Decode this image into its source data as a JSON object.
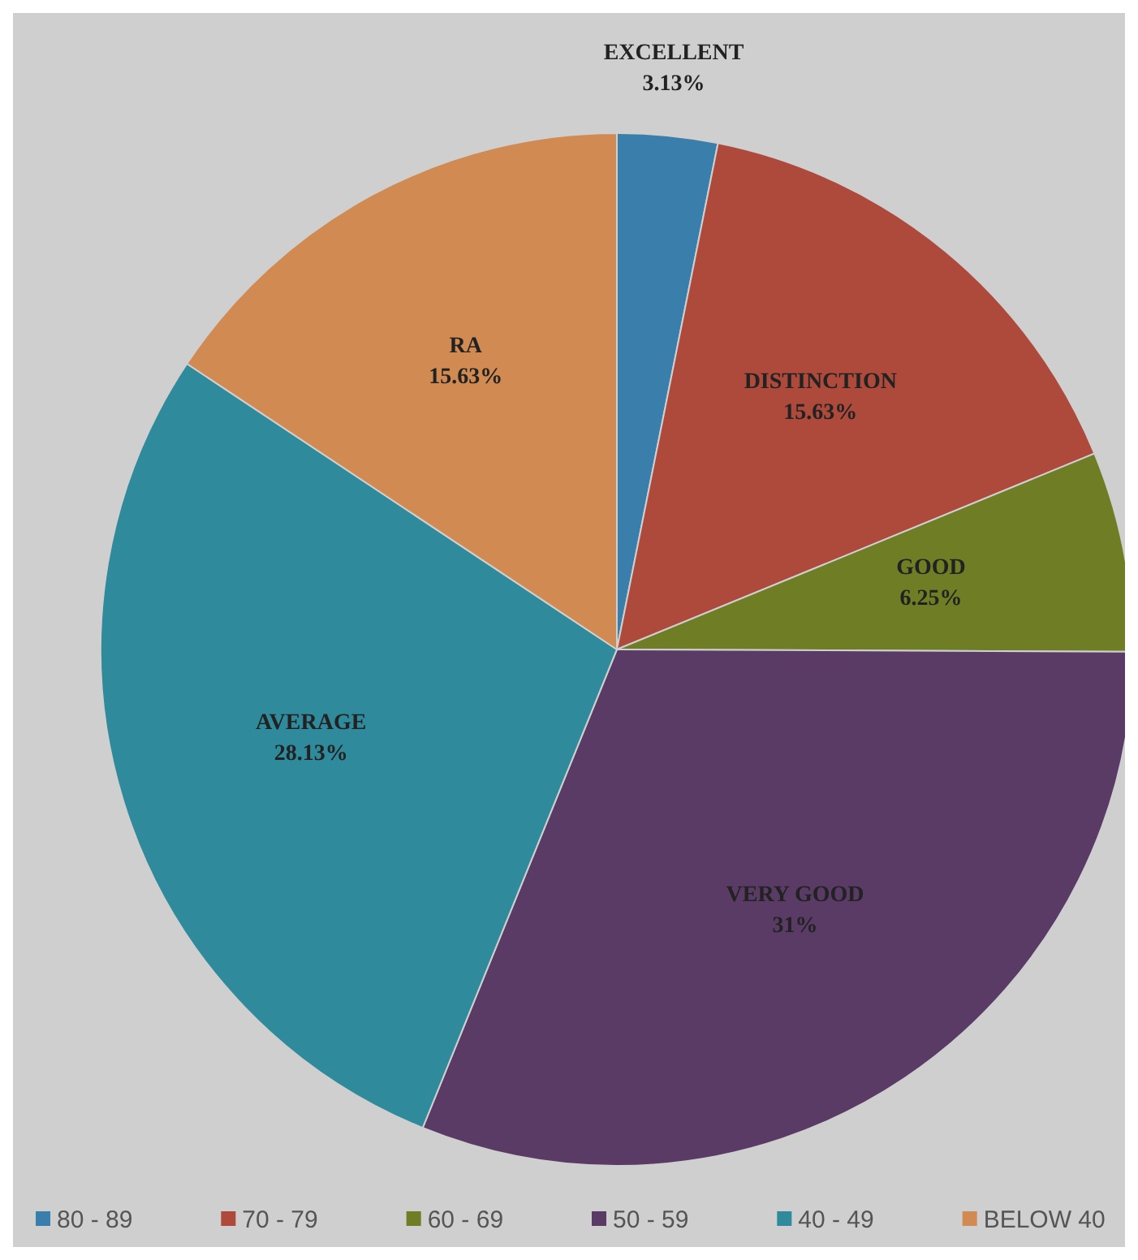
{
  "chart_data": {
    "type": "pie",
    "categories": [
      "80 - 89",
      "70 - 79",
      "60 - 69",
      "50 - 59",
      "40 - 49",
      "BELOW  40"
    ],
    "values": [
      3.13,
      15.63,
      6.25,
      31,
      28.13,
      15.63
    ],
    "colors": [
      "#3a7eab",
      "#ad4a3c",
      "#6f7d25",
      "#5a3b66",
      "#2f8a9c",
      "#d08a52"
    ],
    "value_labels": [
      "EXCELLENT\n3.13%",
      "DISTINCTION\n15.63%",
      "GOOD\n6.25%",
      "VERY GOOD\n31%",
      "AVERAGE\n28.13%",
      "RA\n15.63%"
    ],
    "legend": "bottom"
  }
}
